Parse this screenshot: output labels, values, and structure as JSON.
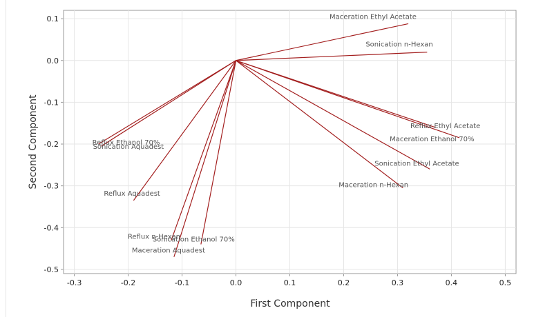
{
  "chart_data": {
    "type": "biplot",
    "xlabel": "First Component",
    "ylabel": "Second Component",
    "xlim": [
      -0.32,
      0.52
    ],
    "ylim": [
      -0.51,
      0.12
    ],
    "xticks": [
      -0.3,
      -0.2,
      -0.1,
      0.0,
      0.1,
      0.2,
      0.3,
      0.4,
      0.5
    ],
    "yticks": [
      0.1,
      0.0,
      -0.1,
      -0.2,
      -0.3,
      -0.4,
      -0.5
    ],
    "xtick_labels": [
      "-0.3",
      "-0.2",
      "-0.1",
      "0.0",
      "0.1",
      "0.2",
      "0.3",
      "0.4",
      "0.5"
    ],
    "ytick_labels": [
      "0.1",
      "0.0",
      "-0.1",
      "-0.2",
      "-0.3",
      "-0.4",
      "-0.5"
    ],
    "grid": true,
    "origin": [
      0,
      0
    ],
    "vectors": [
      {
        "label": "Maceration Ethyl Acetate",
        "x": 0.32,
        "y": 0.088
      },
      {
        "label": "Sonication n-Hexan",
        "x": 0.355,
        "y": 0.02
      },
      {
        "label": "Reflux Ethyl Acetate",
        "x": 0.37,
        "y": -0.16
      },
      {
        "label": "Maceration Ethanol 70%",
        "x": 0.415,
        "y": -0.185
      },
      {
        "label": "Sonication Ethyl Acetate",
        "x": 0.36,
        "y": -0.26
      },
      {
        "label": "Maceration n-Hexan",
        "x": 0.31,
        "y": -0.305
      },
      {
        "label": "Reflux Ethanol 70%",
        "x": -0.255,
        "y": -0.2
      },
      {
        "label": "Sonication Aquadest",
        "x": -0.25,
        "y": -0.205
      },
      {
        "label": "Reflux Aquadest",
        "x": -0.19,
        "y": -0.335
      },
      {
        "label": "Reflux n-Hexan",
        "x": -0.12,
        "y": -0.43
      },
      {
        "label": "Sonication Ethanol 70%",
        "x": -0.065,
        "y": -0.44
      },
      {
        "label": "Maceration Aquadest",
        "x": -0.115,
        "y": -0.47
      }
    ]
  },
  "colors": {
    "vector": "#a31f1f",
    "grid": "#e6e6e6",
    "axis": "#999999"
  }
}
